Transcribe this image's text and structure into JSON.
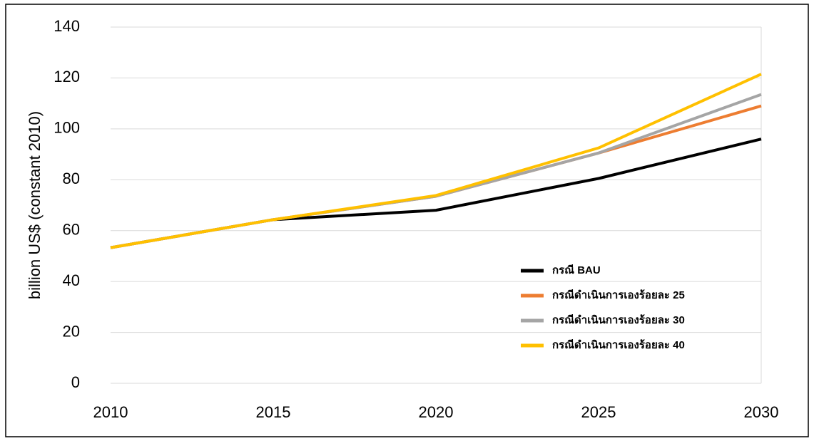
{
  "chart_data": {
    "type": "line",
    "y_label": "billion US$ (constant 2010)",
    "x": [
      2010,
      2015,
      2020,
      2025,
      2030
    ],
    "xlim": [
      2010,
      2030
    ],
    "xticks": [
      2010,
      2015,
      2020,
      2025,
      2030
    ],
    "ylim": [
      0,
      140
    ],
    "yticks": [
      0,
      20,
      40,
      60,
      80,
      100,
      120,
      140
    ],
    "grid": true,
    "legend": "lower right",
    "series": [
      {
        "name": "กรณี BAU",
        "color": "#000000",
        "values": [
          53.3,
          64.3,
          68,
          80.5,
          96
        ]
      },
      {
        "name": "กรณีดำเนินการเองร้อยละ 25",
        "color": "#ed7d31",
        "values": [
          53.3,
          64.3,
          73.5,
          90.5,
          109
        ]
      },
      {
        "name": "กรณีดำเนินการเองร้อยละ 30",
        "color": "#a5a5a5",
        "values": [
          53.3,
          64.3,
          73.5,
          90.5,
          113.5
        ]
      },
      {
        "name": "กรณีดำเนินการเองร้อยละ 40",
        "color": "#ffc000",
        "values": [
          53.3,
          64.3,
          73.8,
          92.5,
          121.5
        ]
      }
    ]
  }
}
